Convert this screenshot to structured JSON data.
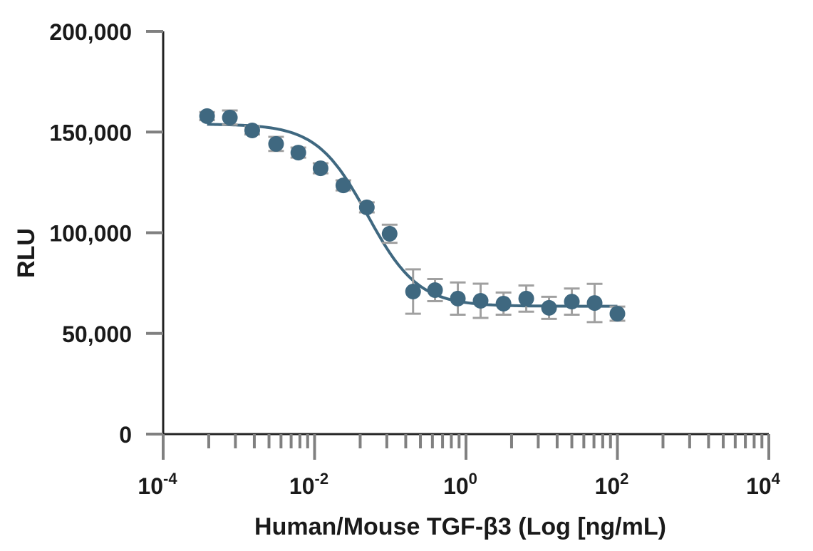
{
  "chart_data": {
    "type": "scatter",
    "title": "",
    "xlabel": "Human/Mouse TGF-β3 (Log [ng/mL)",
    "ylabel": "RLU",
    "xscale": "log",
    "xlim": [
      0.0001,
      10000
    ],
    "ylim": [
      0,
      200000
    ],
    "x_ticks": [
      {
        "base": "10",
        "exp": "-4",
        "value": 0.0001
      },
      {
        "base": "10",
        "exp": "-2",
        "value": 0.01
      },
      {
        "base": "10",
        "exp": "0",
        "value": 1
      },
      {
        "base": "10",
        "exp": "2",
        "value": 100
      },
      {
        "base": "10",
        "exp": "4",
        "value": 10000
      }
    ],
    "y_ticks": [
      {
        "label": "0",
        "value": 0
      },
      {
        "label": "50,000",
        "value": 50000
      },
      {
        "label": "100,000",
        "value": 100000
      },
      {
        "label": "150,000",
        "value": 150000
      },
      {
        "label": "200,000",
        "value": 200000
      }
    ],
    "series": [
      {
        "name": "TGF-β3",
        "color": "#3f6880",
        "error_color": "#a0a0a0",
        "x": [
          0.00038,
          0.00076,
          0.0015,
          0.0031,
          0.0061,
          0.012,
          0.024,
          0.049,
          0.098,
          0.2,
          0.39,
          0.78,
          1.56,
          3.13,
          6.25,
          12.5,
          25,
          50,
          100
        ],
        "y": [
          157900,
          157200,
          150800,
          144100,
          139800,
          132000,
          123500,
          112600,
          99500,
          70800,
          71500,
          67300,
          66200,
          64800,
          67300,
          62700,
          65800,
          65100,
          59800
        ],
        "err": [
          2000,
          3500,
          2000,
          3500,
          2500,
          2500,
          2500,
          2500,
          4500,
          11000,
          5500,
          8000,
          8500,
          5500,
          6500,
          5500,
          6500,
          9500,
          3500
        ]
      }
    ],
    "fit": {
      "top": 154000,
      "bottom": 63500,
      "ec50": 0.05,
      "hill": 1.3
    },
    "grid": false,
    "legend": "none"
  }
}
